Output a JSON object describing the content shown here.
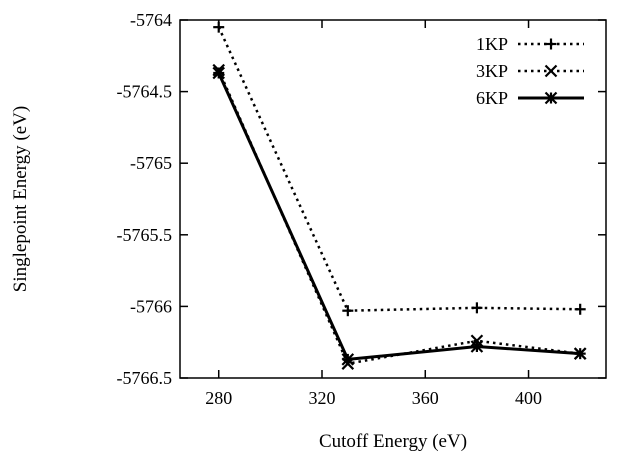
{
  "chart_data": {
    "type": "line",
    "title": "",
    "xlabel": "Cutoff Energy (eV)",
    "ylabel": "Singlepoint Energy (eV)",
    "xlim": [
      265,
      430
    ],
    "ylim": [
      -5766.5,
      -5764
    ],
    "xticks": [
      "280",
      "320",
      "360",
      "400"
    ],
    "yticks": [
      "-5764",
      "-5764.5",
      "-5765",
      "-5765.5",
      "-5766",
      "-5766.5"
    ],
    "legend_position": "top-right",
    "grid": false,
    "series": [
      {
        "name": "1KP",
        "style": "dotted",
        "marker": "plus",
        "x": [
          280,
          330,
          380,
          420
        ],
        "y": [
          -5764.05,
          -5766.03,
          -5766.01,
          -5766.02
        ]
      },
      {
        "name": "3KP",
        "style": "dotted",
        "marker": "x",
        "x": [
          280,
          330,
          380,
          420
        ],
        "y": [
          -5764.35,
          -5766.4,
          -5766.24,
          -5766.33
        ]
      },
      {
        "name": "6KP",
        "style": "solid",
        "marker": "asterisk",
        "x": [
          280,
          330,
          380,
          420
        ],
        "y": [
          -5764.37,
          -5766.37,
          -5766.28,
          -5766.33
        ]
      }
    ]
  }
}
